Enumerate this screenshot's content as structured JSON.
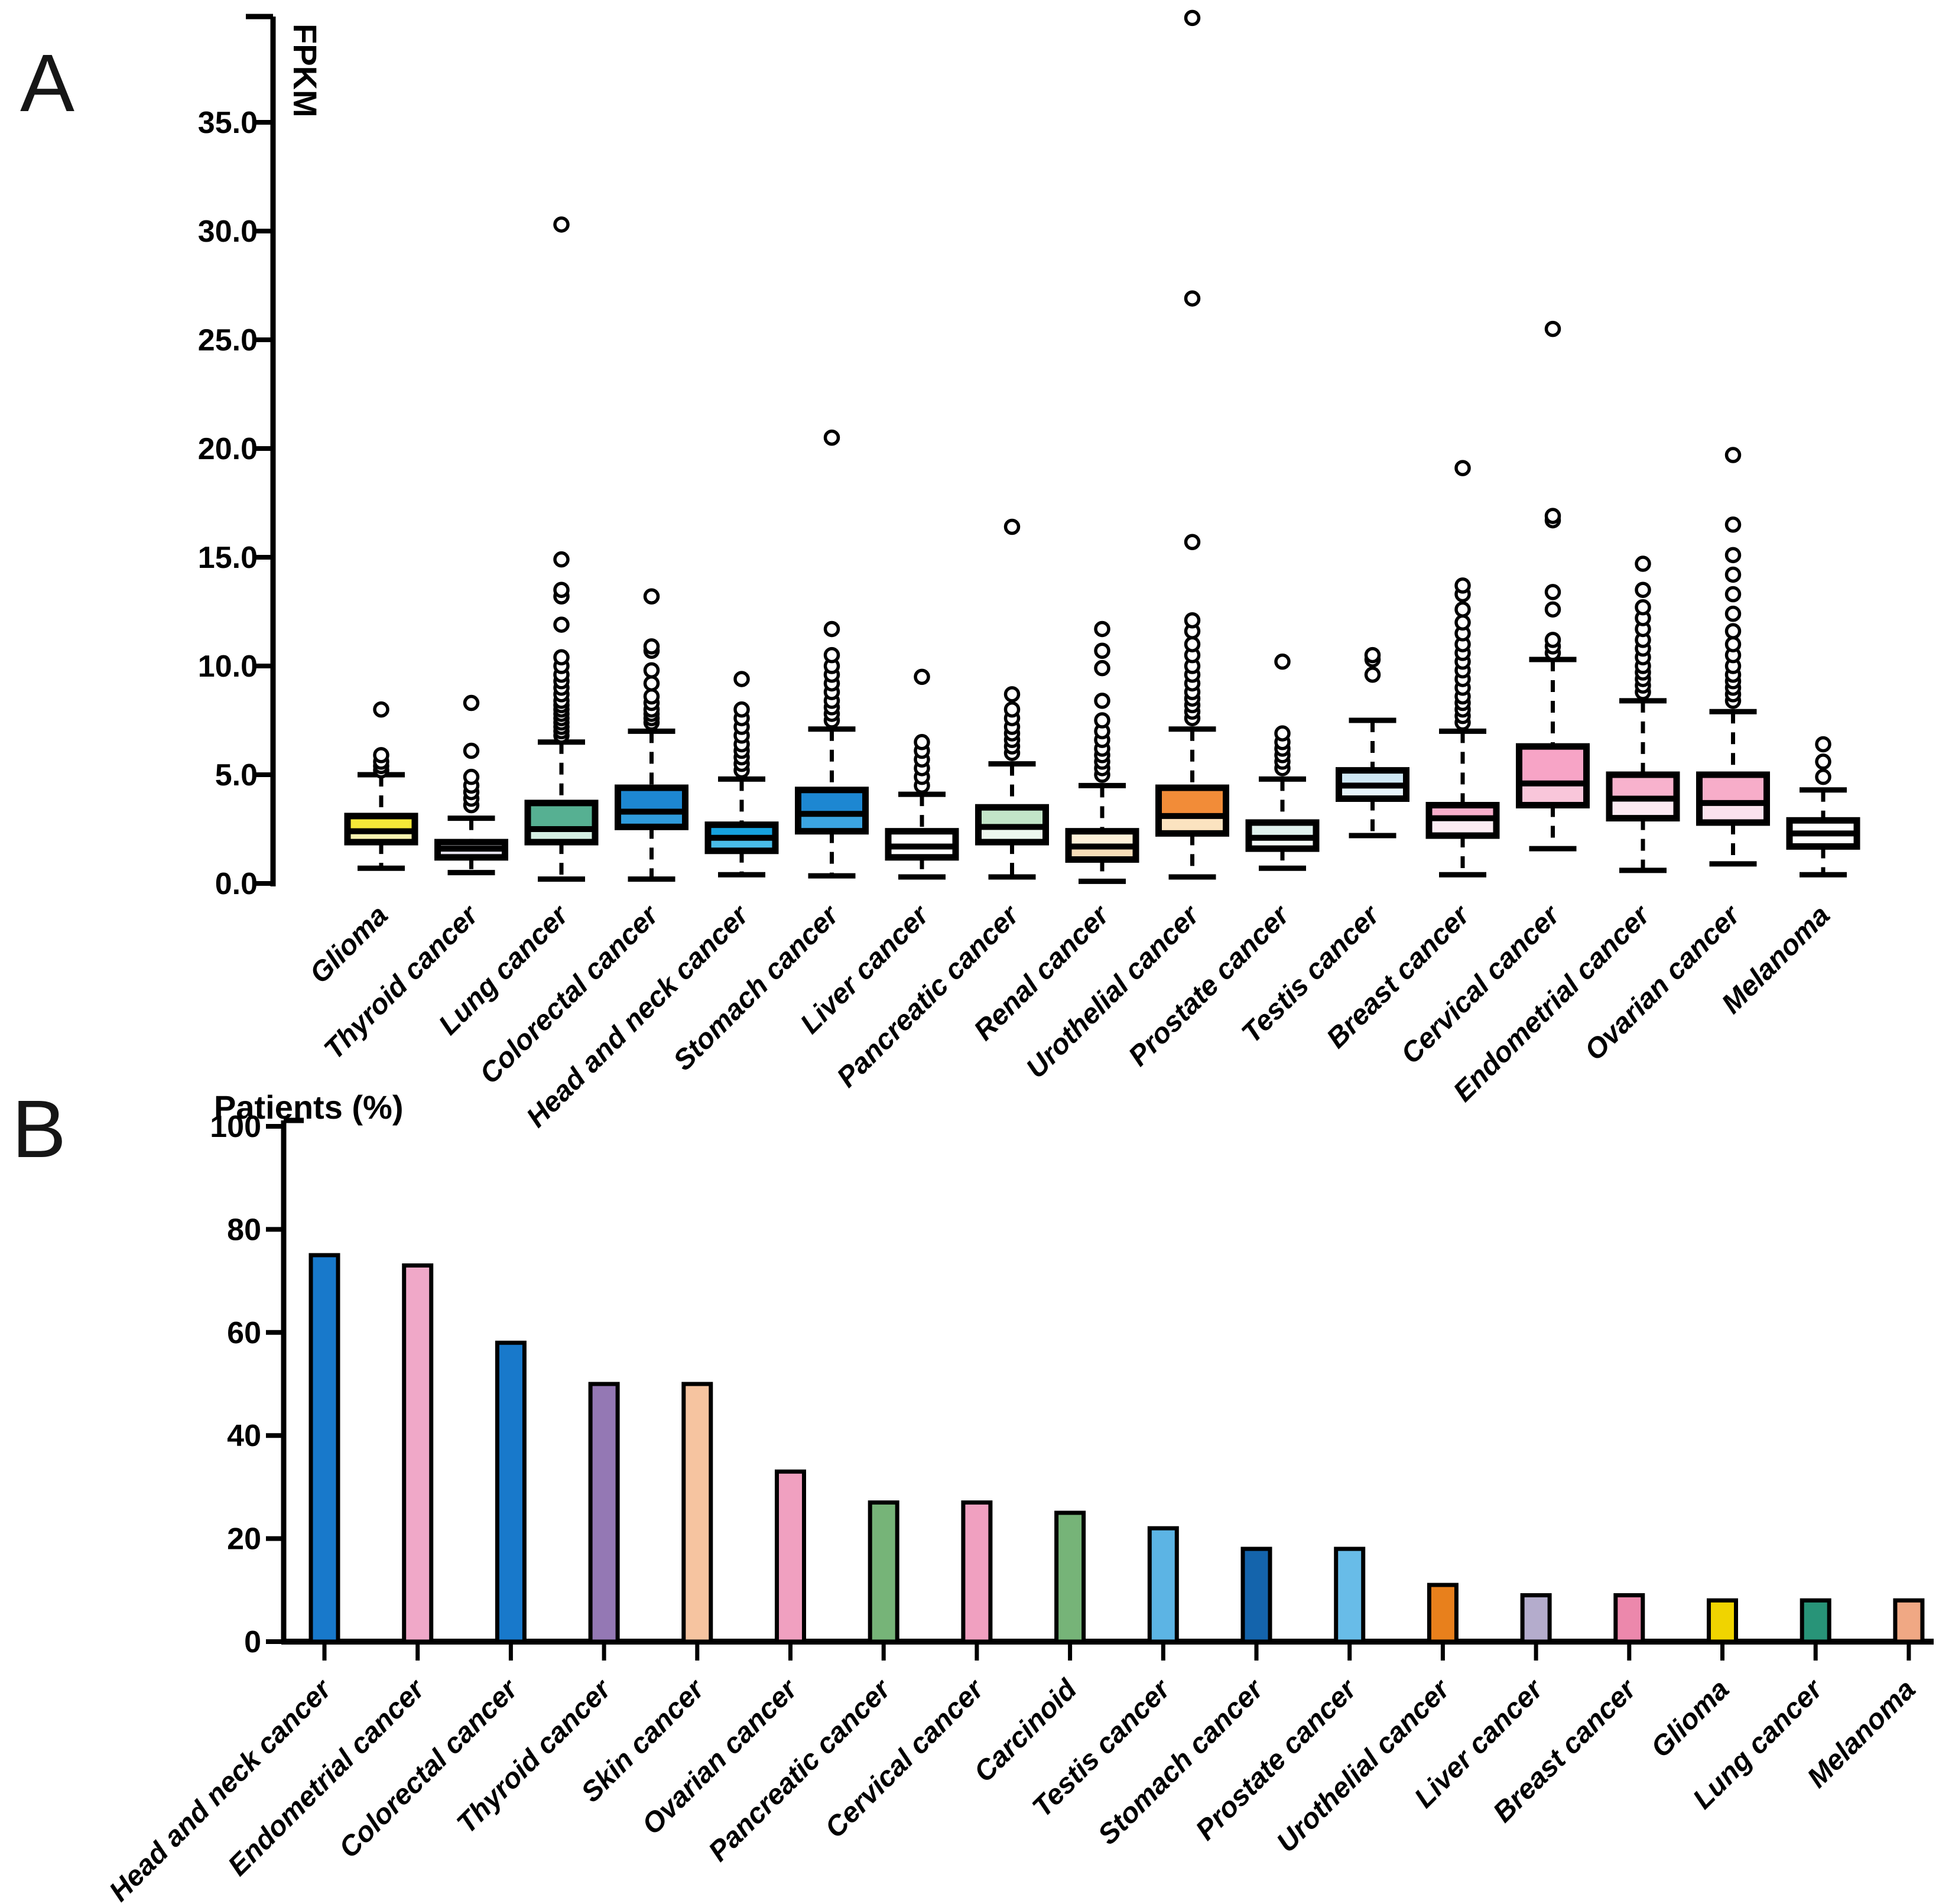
{
  "panels": {
    "a_label": "A",
    "b_label": "B"
  },
  "chart_data": [
    {
      "type": "boxplot",
      "panel": "A",
      "ylabel": "FPKM",
      "y_ticks": [
        0,
        5,
        10,
        15,
        20,
        25,
        30,
        35
      ],
      "y_tick_labels": [
        "0.0",
        "5.0",
        "10.0",
        "15.0",
        "20.0",
        "25.0",
        "30.0",
        "35.0"
      ],
      "ylim": [
        0,
        40
      ],
      "grid": false,
      "outlier_marker": "open-circle",
      "categories": [
        {
          "label": "Glioma",
          "whisker_low": 0.7,
          "q1": 1.9,
          "median": 2.4,
          "q3": 3.1,
          "whisker_high": 5.0,
          "color_upper": "#f4e838",
          "color_lower": "#f8f3b0",
          "outliers": [
            5.2,
            5.4,
            5.6,
            5.9,
            8.0
          ]
        },
        {
          "label": "Thyroid cancer",
          "whisker_low": 0.5,
          "q1": 1.2,
          "median": 1.6,
          "q3": 1.9,
          "whisker_high": 3.0,
          "color_upper": "#f0eef5",
          "color_lower": "#e6e2ee",
          "outliers": [
            3.6,
            3.9,
            4.2,
            4.5,
            4.9,
            6.1,
            8.3
          ]
        },
        {
          "label": "Lung cancer",
          "whisker_low": 0.2,
          "q1": 1.9,
          "median": 2.5,
          "q3": 3.7,
          "whisker_high": 6.5,
          "color_upper": "#56b092",
          "color_lower": "#d5efe3",
          "outliers": [
            6.8,
            7.0,
            7.2,
            7.4,
            7.6,
            7.8,
            8.0,
            8.2,
            8.4,
            8.7,
            9.0,
            9.3,
            9.6,
            10.0,
            10.4,
            11.9,
            13.2,
            13.5,
            14.9,
            30.3
          ]
        },
        {
          "label": "Colorectal cancer",
          "whisker_low": 0.2,
          "q1": 2.6,
          "median": 3.3,
          "q3": 4.4,
          "whisker_high": 7.0,
          "color_upper": "#1d87d2",
          "color_lower": "#2f9bdc",
          "outliers": [
            7.4,
            7.6,
            7.8,
            8.0,
            8.3,
            8.6,
            9.2,
            9.8,
            10.7,
            10.9,
            13.2
          ]
        },
        {
          "label": "Head and neck cancer",
          "whisker_low": 0.4,
          "q1": 1.5,
          "median": 2.1,
          "q3": 2.7,
          "whisker_high": 4.8,
          "color_upper": "#16a2de",
          "color_lower": "#49bce8",
          "outliers": [
            5.2,
            5.5,
            5.8,
            6.1,
            6.4,
            6.8,
            7.2,
            7.6,
            8.0,
            9.4
          ]
        },
        {
          "label": "Stomach cancer",
          "whisker_low": 0.35,
          "q1": 2.4,
          "median": 3.2,
          "q3": 4.3,
          "whisker_high": 7.1,
          "color_upper": "#1d87d2",
          "color_lower": "#3ba4e2",
          "outliers": [
            7.5,
            7.8,
            8.1,
            8.4,
            8.8,
            9.2,
            9.6,
            10.0,
            10.5,
            11.7,
            20.5
          ]
        },
        {
          "label": "Liver cancer",
          "whisker_low": 0.3,
          "q1": 1.2,
          "median": 1.7,
          "q3": 2.4,
          "whisker_high": 4.1,
          "color_upper": "#ffffff",
          "color_lower": "#ffffff",
          "outliers": [
            4.5,
            4.9,
            5.3,
            5.7,
            6.1,
            6.5,
            9.5
          ]
        },
        {
          "label": "Pancreatic cancer",
          "whisker_low": 0.3,
          "q1": 1.9,
          "median": 2.6,
          "q3": 3.5,
          "whisker_high": 5.5,
          "color_upper": "#c2e5c8",
          "color_lower": "#edf7ee",
          "outliers": [
            6.0,
            6.3,
            6.6,
            6.9,
            7.2,
            7.6,
            8.0,
            8.7,
            16.4
          ]
        },
        {
          "label": "Renal cancer",
          "whisker_low": 0.1,
          "q1": 1.1,
          "median": 1.7,
          "q3": 2.4,
          "whisker_high": 4.5,
          "color_upper": "#fdf0d8",
          "color_lower": "#f7ddb8",
          "outliers": [
            5.0,
            5.3,
            5.6,
            5.9,
            6.2,
            6.6,
            7.0,
            7.5,
            8.4,
            9.9,
            10.7,
            11.7
          ]
        },
        {
          "label": "Urothelial cancer",
          "whisker_low": 0.3,
          "q1": 2.3,
          "median": 3.1,
          "q3": 4.4,
          "whisker_high": 7.1,
          "color_upper": "#f28c38",
          "color_lower": "#fbe3c0",
          "outliers": [
            7.6,
            7.9,
            8.2,
            8.5,
            8.8,
            9.2,
            9.6,
            10.0,
            10.5,
            11.0,
            11.6,
            12.1,
            15.7,
            26.9,
            39.8
          ]
        },
        {
          "label": "Prostate cancer",
          "whisker_low": 0.7,
          "q1": 1.6,
          "median": 2.1,
          "q3": 2.8,
          "whisker_high": 4.8,
          "color_upper": "#e0f2ee",
          "color_lower": "#f4faf8",
          "outliers": [
            5.3,
            5.6,
            5.9,
            6.2,
            6.5,
            6.9,
            10.2
          ]
        },
        {
          "label": "Testis cancer",
          "whisker_low": 2.2,
          "q1": 3.9,
          "median": 4.5,
          "q3": 5.2,
          "whisker_high": 7.5,
          "color_upper": "#cfe8f5",
          "color_lower": "#e6f3fa",
          "outliers": [
            9.6,
            10.3,
            10.5
          ]
        },
        {
          "label": "Breast cancer",
          "whisker_low": 0.4,
          "q1": 2.2,
          "median": 3.0,
          "q3": 3.6,
          "whisker_high": 7.0,
          "color_upper": "#f8aecb",
          "color_lower": "#fcecf3",
          "outliers": [
            7.4,
            7.7,
            8.0,
            8.3,
            8.6,
            9.0,
            9.4,
            9.8,
            10.2,
            10.6,
            11.0,
            11.5,
            12.0,
            12.6,
            13.3,
            13.7,
            19.1
          ]
        },
        {
          "label": "Cervical cancer",
          "whisker_low": 1.6,
          "q1": 3.6,
          "median": 4.6,
          "q3": 6.3,
          "whisker_high": 10.3,
          "color_upper": "#f7a4c6",
          "color_lower": "#f9c6da",
          "outliers": [
            10.6,
            10.9,
            11.2,
            12.6,
            13.4,
            16.7,
            16.9,
            25.5
          ]
        },
        {
          "label": "Endometrial cancer",
          "whisker_low": 0.6,
          "q1": 3.0,
          "median": 3.9,
          "q3": 5.0,
          "whisker_high": 8.4,
          "color_upper": "#f8b2cd",
          "color_lower": "#fce9f2",
          "outliers": [
            8.8,
            9.1,
            9.4,
            9.7,
            10.0,
            10.4,
            10.8,
            11.2,
            11.7,
            12.2,
            12.7,
            13.5,
            14.7
          ]
        },
        {
          "label": "Ovarian cancer",
          "whisker_low": 0.9,
          "q1": 2.8,
          "median": 3.7,
          "q3": 5.0,
          "whisker_high": 7.9,
          "color_upper": "#f7adc9",
          "color_lower": "#fbe2ed",
          "outliers": [
            8.4,
            8.7,
            9.0,
            9.3,
            9.6,
            10.0,
            10.5,
            11.0,
            11.6,
            12.4,
            13.3,
            14.2,
            15.1,
            16.5,
            19.7
          ]
        },
        {
          "label": "Melanoma",
          "whisker_low": 0.4,
          "q1": 1.7,
          "median": 2.3,
          "q3": 2.9,
          "whisker_high": 4.3,
          "color_upper": "#ffffff",
          "color_lower": "#ffffff",
          "outliers": [
            4.9,
            5.6,
            6.4
          ]
        }
      ]
    },
    {
      "type": "bar",
      "panel": "B",
      "ylabel": "Patients (%)",
      "y_ticks": [
        0,
        20,
        40,
        60,
        80,
        100
      ],
      "y_tick_labels": [
        "0",
        "20",
        "40",
        "60",
        "80",
        "100"
      ],
      "ylim": [
        0,
        100
      ],
      "grid": false,
      "categories": [
        {
          "label": "Head and neck cancer",
          "value": 75,
          "color": "#1879cb"
        },
        {
          "label": "Endometrial cancer",
          "value": 73,
          "color": "#f0a8c8"
        },
        {
          "label": "Colorectal cancer",
          "value": 58,
          "color": "#1879cb"
        },
        {
          "label": "Thyroid cancer",
          "value": 50,
          "color": "#9478b4"
        },
        {
          "label": "Skin cancer",
          "value": 50,
          "color": "#f6c4a0"
        },
        {
          "label": "Ovarian cancer",
          "value": 33,
          "color": "#f0a0c0"
        },
        {
          "label": "Pancreatic cancer",
          "value": 27,
          "color": "#76b478"
        },
        {
          "label": "Cervical cancer",
          "value": 27,
          "color": "#f0a0c0"
        },
        {
          "label": "Carcinoid",
          "value": 25,
          "color": "#76b478"
        },
        {
          "label": "Testis cancer",
          "value": 22,
          "color": "#5cb4e4"
        },
        {
          "label": "Stomach cancer",
          "value": 18,
          "color": "#1464ac"
        },
        {
          "label": "Prostate cancer",
          "value": 18,
          "color": "#68bce8"
        },
        {
          "label": "Urothelial cancer",
          "value": 11,
          "color": "#e8801c"
        },
        {
          "label": "Liver cancer",
          "value": 9,
          "color": "#b4accc"
        },
        {
          "label": "Breast cancer",
          "value": 9,
          "color": "#ec88ac"
        },
        {
          "label": "Glioma",
          "value": 8,
          "color": "#f0d400"
        },
        {
          "label": "Lung cancer",
          "value": 8,
          "color": "#289478"
        },
        {
          "label": "Melanoma",
          "value": 8,
          "color": "#f0a884"
        }
      ]
    }
  ]
}
